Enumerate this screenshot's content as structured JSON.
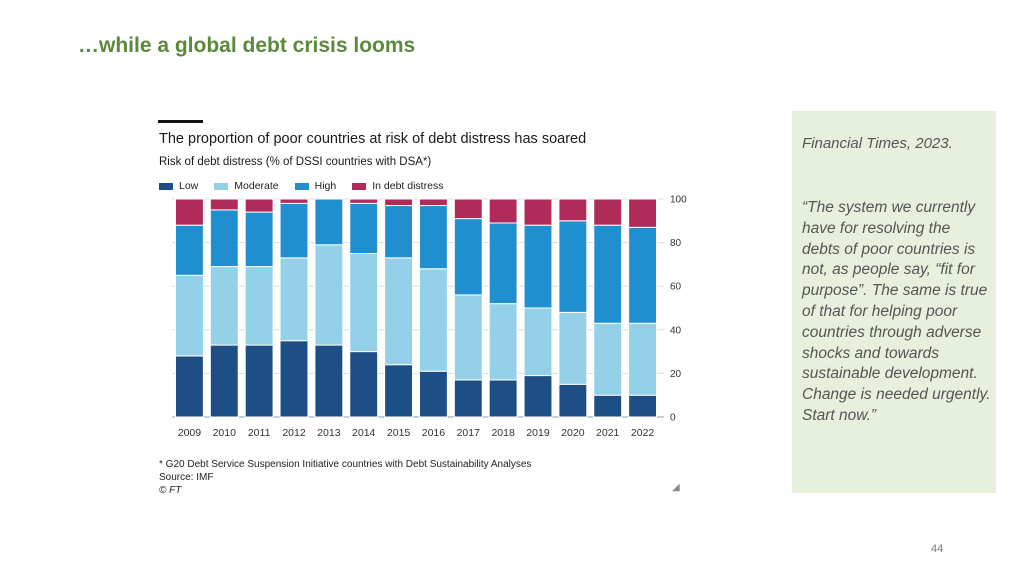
{
  "slide": {
    "title": "…while a global debt crisis looms",
    "page_number": "44"
  },
  "quote_panel": {
    "source": "Financial Times, 2023.",
    "quote": "“The system we currently have for resolving the debts of poor countries is not, as people say, “fit for purpose”. The same is true of that for helping poor countries through adverse shocks and towards sustainable development. Change is needed urgently. Start now.”"
  },
  "chart_data": {
    "type": "bar",
    "stacked": true,
    "title": "The proportion of poor countries at risk of debt distress has soared",
    "subtitle": "Risk of debt distress (% of DSSI countries with DSA*)",
    "categories": [
      "2009",
      "2010",
      "2011",
      "2012",
      "2013",
      "2014",
      "2015",
      "2016",
      "2017",
      "2018",
      "2019",
      "2020",
      "2021",
      "2022"
    ],
    "series": [
      {
        "name": "Low",
        "color": "#1e4e86",
        "values": [
          28,
          33,
          33,
          35,
          33,
          30,
          24,
          21,
          17,
          17,
          19,
          15,
          10,
          10
        ]
      },
      {
        "name": "Moderate",
        "color": "#94d1e8",
        "values": [
          37,
          36,
          36,
          38,
          46,
          45,
          49,
          47,
          39,
          35,
          31,
          33,
          33,
          33
        ]
      },
      {
        "name": "High",
        "color": "#1f8fd0",
        "values": [
          23,
          26,
          25,
          25,
          21,
          23,
          24,
          29,
          35,
          37,
          38,
          42,
          45,
          44
        ]
      },
      {
        "name": "In debt distress",
        "color": "#b02a5a",
        "values": [
          12,
          5,
          6,
          2,
          0,
          2,
          3,
          3,
          9,
          11,
          12,
          10,
          12,
          13
        ]
      }
    ],
    "ylim": [
      0,
      100
    ],
    "yticks": [
      0,
      20,
      40,
      60,
      80,
      100
    ],
    "y_axis_position": "right",
    "grid": true,
    "legend": "top-left",
    "footnotes": {
      "note": "* G20 Debt Service Suspension Initiative countries with Debt Sustainability Analyses",
      "source": "Source: IMF",
      "copyright": "© FT"
    }
  }
}
